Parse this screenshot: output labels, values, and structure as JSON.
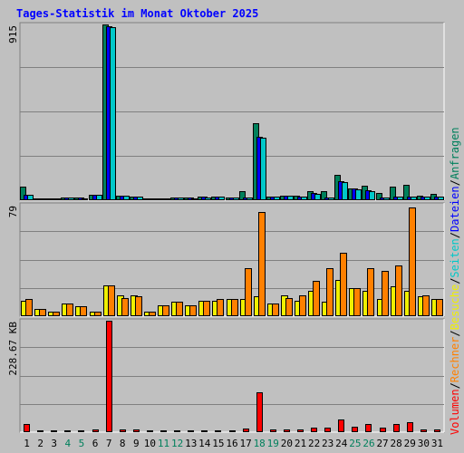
{
  "title": "Tages-Statistik im Monat Oktober 2025",
  "colors": {
    "background": "#c0c0c0",
    "title": "#0000ff",
    "anfragen": "#00805c",
    "dateien": "#0000ff",
    "seiten": "#00c8c8",
    "besuche": "#f0f000",
    "rechner": "#ff8000",
    "volumen": "#ff0000",
    "weekend_label": "#00805c",
    "label": "#000000"
  },
  "legend": [
    {
      "text": "Volumen",
      "color_key": "volumen"
    },
    {
      "text": "/",
      "color_key": "label"
    },
    {
      "text": "Rechner",
      "color_key": "rechner"
    },
    {
      "text": "/",
      "color_key": "label"
    },
    {
      "text": "Besuche",
      "color_key": "besuche"
    },
    {
      "text": "/",
      "color_key": "label"
    },
    {
      "text": "Seiten",
      "color_key": "seiten"
    },
    {
      "text": "/",
      "color_key": "label"
    },
    {
      "text": "Dateien",
      "color_key": "dateien"
    },
    {
      "text": "/",
      "color_key": "label"
    },
    {
      "text": "Anfragen",
      "color_key": "anfragen"
    }
  ],
  "chart_data": [
    {
      "type": "bar",
      "panel": "hits",
      "ymax_label": "915",
      "ylim": [
        0,
        915
      ],
      "grid": true,
      "categories": [
        "1",
        "2",
        "3",
        "4",
        "5",
        "6",
        "7",
        "8",
        "9",
        "10",
        "11",
        "12",
        "13",
        "14",
        "15",
        "16",
        "17",
        "18",
        "19",
        "20",
        "21",
        "22",
        "23",
        "24",
        "25",
        "26",
        "27",
        "28",
        "29",
        "30",
        "31"
      ],
      "weekend": [
        "4",
        "5",
        "11",
        "12",
        "18",
        "19",
        "25",
        "26"
      ],
      "series": [
        {
          "color_key": "anfragen",
          "values": [
            70,
            10,
            5,
            15,
            12,
            30,
            915,
            25,
            20,
            8,
            10,
            15,
            12,
            18,
            20,
            14,
            45,
            400,
            20,
            25,
            25,
            45,
            45,
            130,
            60,
            75,
            40,
            70,
            80,
            25,
            35
          ]
        },
        {
          "color_key": "dateien",
          "values": [
            28,
            10,
            5,
            15,
            12,
            30,
            905,
            25,
            20,
            8,
            10,
            15,
            12,
            18,
            20,
            14,
            15,
            330,
            20,
            25,
            20,
            40,
            15,
            100,
            60,
            50,
            15,
            20,
            20,
            20,
            20
          ]
        },
        {
          "color_key": "seiten",
          "values": [
            28,
            8,
            4,
            12,
            10,
            28,
            900,
            22,
            18,
            6,
            8,
            12,
            10,
            15,
            18,
            12,
            12,
            325,
            18,
            22,
            18,
            35,
            12,
            95,
            55,
            45,
            12,
            18,
            18,
            18,
            18
          ]
        }
      ]
    },
    {
      "type": "bar",
      "panel": "visits",
      "ymax_label": "79",
      "ylim": [
        0,
        79
      ],
      "grid": true,
      "categories": [
        "1",
        "2",
        "3",
        "4",
        "5",
        "6",
        "7",
        "8",
        "9",
        "10",
        "11",
        "12",
        "13",
        "14",
        "15",
        "16",
        "17",
        "18",
        "19",
        "20",
        "21",
        "22",
        "23",
        "24",
        "25",
        "26",
        "27",
        "28",
        "29",
        "30",
        "31"
      ],
      "series": [
        {
          "color_key": "besuche",
          "values": [
            11,
            5,
            3,
            9,
            7,
            3,
            22,
            15,
            15,
            3,
            8,
            10,
            8,
            11,
            11,
            12,
            12,
            14,
            9,
            15,
            11,
            18,
            10,
            26,
            20,
            18,
            12,
            21,
            18,
            14,
            12
          ]
        },
        {
          "color_key": "rechner",
          "values": [
            12,
            5,
            3,
            9,
            7,
            3,
            22,
            13,
            14,
            3,
            8,
            10,
            8,
            11,
            12,
            12,
            34,
            74,
            9,
            13,
            15,
            25,
            34,
            45,
            20,
            34,
            32,
            36,
            77,
            15,
            12
          ]
        }
      ]
    },
    {
      "type": "bar",
      "panel": "volume",
      "ymax_label": "228.67 KB",
      "ylim": [
        0,
        228.67
      ],
      "grid": true,
      "unit": "KB",
      "categories": [
        "1",
        "2",
        "3",
        "4",
        "5",
        "6",
        "7",
        "8",
        "9",
        "10",
        "11",
        "12",
        "13",
        "14",
        "15",
        "16",
        "17",
        "18",
        "19",
        "20",
        "21",
        "22",
        "23",
        "24",
        "25",
        "26",
        "27",
        "28",
        "29",
        "30",
        "31"
      ],
      "series": [
        {
          "color_key": "volumen",
          "values": [
            16,
            3,
            3,
            3,
            3,
            5,
            228.67,
            6,
            5,
            3,
            3,
            3,
            3,
            3,
            3,
            4,
            8,
            82,
            5,
            6,
            6,
            10,
            10,
            26,
            12,
            16,
            10,
            16,
            20,
            6,
            6
          ]
        }
      ]
    }
  ]
}
